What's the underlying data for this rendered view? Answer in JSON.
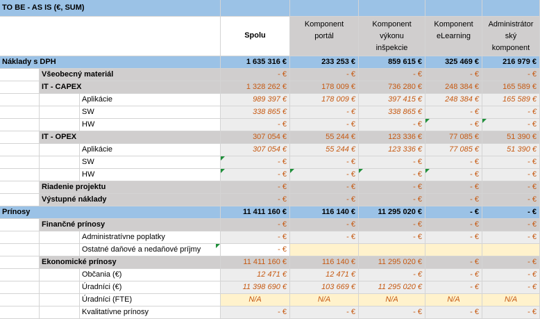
{
  "title": "TO BE - AS IS (€, SUM)",
  "columns": [
    "Spolu",
    "Komponent portál",
    "Komponent výkonu inšpekcie",
    "Komponent eLearning",
    "Administrátorský komponent"
  ],
  "column_lines": [
    [
      "Spolu"
    ],
    [
      "Komponent",
      "portál"
    ],
    [
      "Komponent",
      "výkonu",
      "inšpekcie"
    ],
    [
      "Komponent",
      "eLearning"
    ],
    [
      "Administrátor",
      "ský",
      "komponent"
    ]
  ],
  "rows": [
    {
      "label": "Náklady s DPH",
      "values": [
        "1 635 316 €",
        "233 253 €",
        "859 615 €",
        "325 469 €",
        "216 979 €"
      ]
    },
    {
      "label": "Všeobecný materiál",
      "values": [
        "- €",
        "- €",
        "- €",
        "- €",
        "- €"
      ]
    },
    {
      "label": "IT - CAPEX",
      "values": [
        "1 328 262 €",
        "178 009 €",
        "736 280 €",
        "248 384 €",
        "165 589 €"
      ]
    },
    {
      "label": "Aplikácie",
      "values": [
        "989 397 €",
        "178 009 €",
        "397 415 €",
        "248 384 €",
        "165 589 €"
      ]
    },
    {
      "label": "SW",
      "values": [
        "338 865 €",
        "- €",
        "338 865 €",
        "- €",
        "- €"
      ]
    },
    {
      "label": "HW",
      "values": [
        "- €",
        "- €",
        "- €",
        "- €",
        "- €"
      ]
    },
    {
      "label": "IT - OPEX",
      "values": [
        "307 054 €",
        "55 244 €",
        "123 336 €",
        "77 085 €",
        "51 390 €"
      ]
    },
    {
      "label": "Aplikácie",
      "values": [
        "307 054 €",
        "55 244 €",
        "123 336 €",
        "77 085 €",
        "51 390 €"
      ]
    },
    {
      "label": "SW",
      "values": [
        "- €",
        "- €",
        "- €",
        "- €",
        "- €"
      ]
    },
    {
      "label": "HW",
      "values": [
        "- €",
        "- €",
        "- €",
        "- €",
        "- €"
      ]
    },
    {
      "label": "Riadenie projektu",
      "values": [
        "- €",
        "- €",
        "- €",
        "- €",
        "- €"
      ]
    },
    {
      "label": "Výstupné náklady",
      "values": [
        "- €",
        "- €",
        "- €",
        "- €",
        "- €"
      ]
    },
    {
      "label": "Prínosy",
      "values": [
        "11 411 160 €",
        "116 140 €",
        "11 295 020 €",
        "- €",
        "- €"
      ]
    },
    {
      "label": "Finančné prínosy",
      "values": [
        "- €",
        "- €",
        "- €",
        "- €",
        "- €"
      ]
    },
    {
      "label": "Administratívne poplatky",
      "values": [
        "- €",
        "- €",
        "- €",
        "- €",
        "- €"
      ]
    },
    {
      "label": "Ostatné daňové a nedaňové príjmy",
      "values": [
        "- €",
        "",
        "",
        "",
        ""
      ]
    },
    {
      "label": "Ekonomické prínosy",
      "values": [
        "11 411 160 €",
        "116 140 €",
        "11 295 020 €",
        "- €",
        "- €"
      ]
    },
    {
      "label": "Občania (€)",
      "values": [
        "12 471 €",
        "12 471 €",
        "- €",
        "- €",
        "- €"
      ]
    },
    {
      "label": "Úradníci (€)",
      "values": [
        "11 398 690 €",
        "103 669 €",
        "11 295 020 €",
        "- €",
        "- €"
      ]
    },
    {
      "label": "Úradníci (FTE)",
      "values": [
        "N/A",
        "N/A",
        "N/A",
        "N/A",
        "N/A"
      ]
    },
    {
      "label": "Kvalitatívne prínosy",
      "values": [
        "- €",
        "- €",
        "- €",
        "- €",
        "- €"
      ]
    }
  ]
}
